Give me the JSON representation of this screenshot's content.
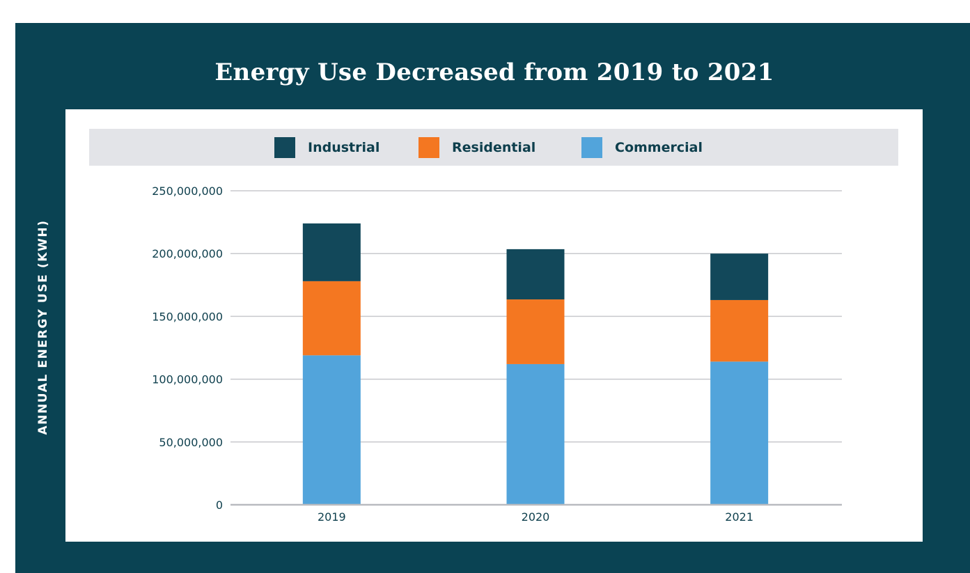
{
  "chart_data": {
    "type": "bar",
    "stacked": true,
    "title": "Energy Use Decreased from 2019 to 2021",
    "ylabel": "ANNUAL ENERGY USE (KWH)",
    "xlabel": "",
    "categories": [
      "2019",
      "2020",
      "2021"
    ],
    "series": [
      {
        "name": "Commercial",
        "color": "#52a4db",
        "values": [
          119000000,
          112000000,
          114000000
        ]
      },
      {
        "name": "Residential",
        "color": "#f47721",
        "values": [
          59000000,
          51500000,
          49000000
        ]
      },
      {
        "name": "Industrial",
        "color": "#12485a",
        "values": [
          46000000,
          40000000,
          37000000
        ]
      }
    ],
    "ylim": [
      0,
      250000000
    ],
    "yticks": [
      0,
      50000000,
      100000000,
      150000000,
      200000000,
      250000000
    ],
    "ytick_labels": [
      "0",
      "50,000,000",
      "100,000,000",
      "150,000,000",
      "200,000,000",
      "250,000,000"
    ],
    "grid": true,
    "legend_position": "top",
    "legend": [
      {
        "label": "Industrial",
        "color": "#12485a"
      },
      {
        "label": "Residential",
        "color": "#f47721"
      },
      {
        "label": "Commercial",
        "color": "#52a4db"
      }
    ]
  },
  "colors": {
    "panel_background": "#0a4353",
    "legend_background": "#e3e4e8",
    "gridline": "#c8c9cd",
    "text": "#0e3f4d"
  }
}
